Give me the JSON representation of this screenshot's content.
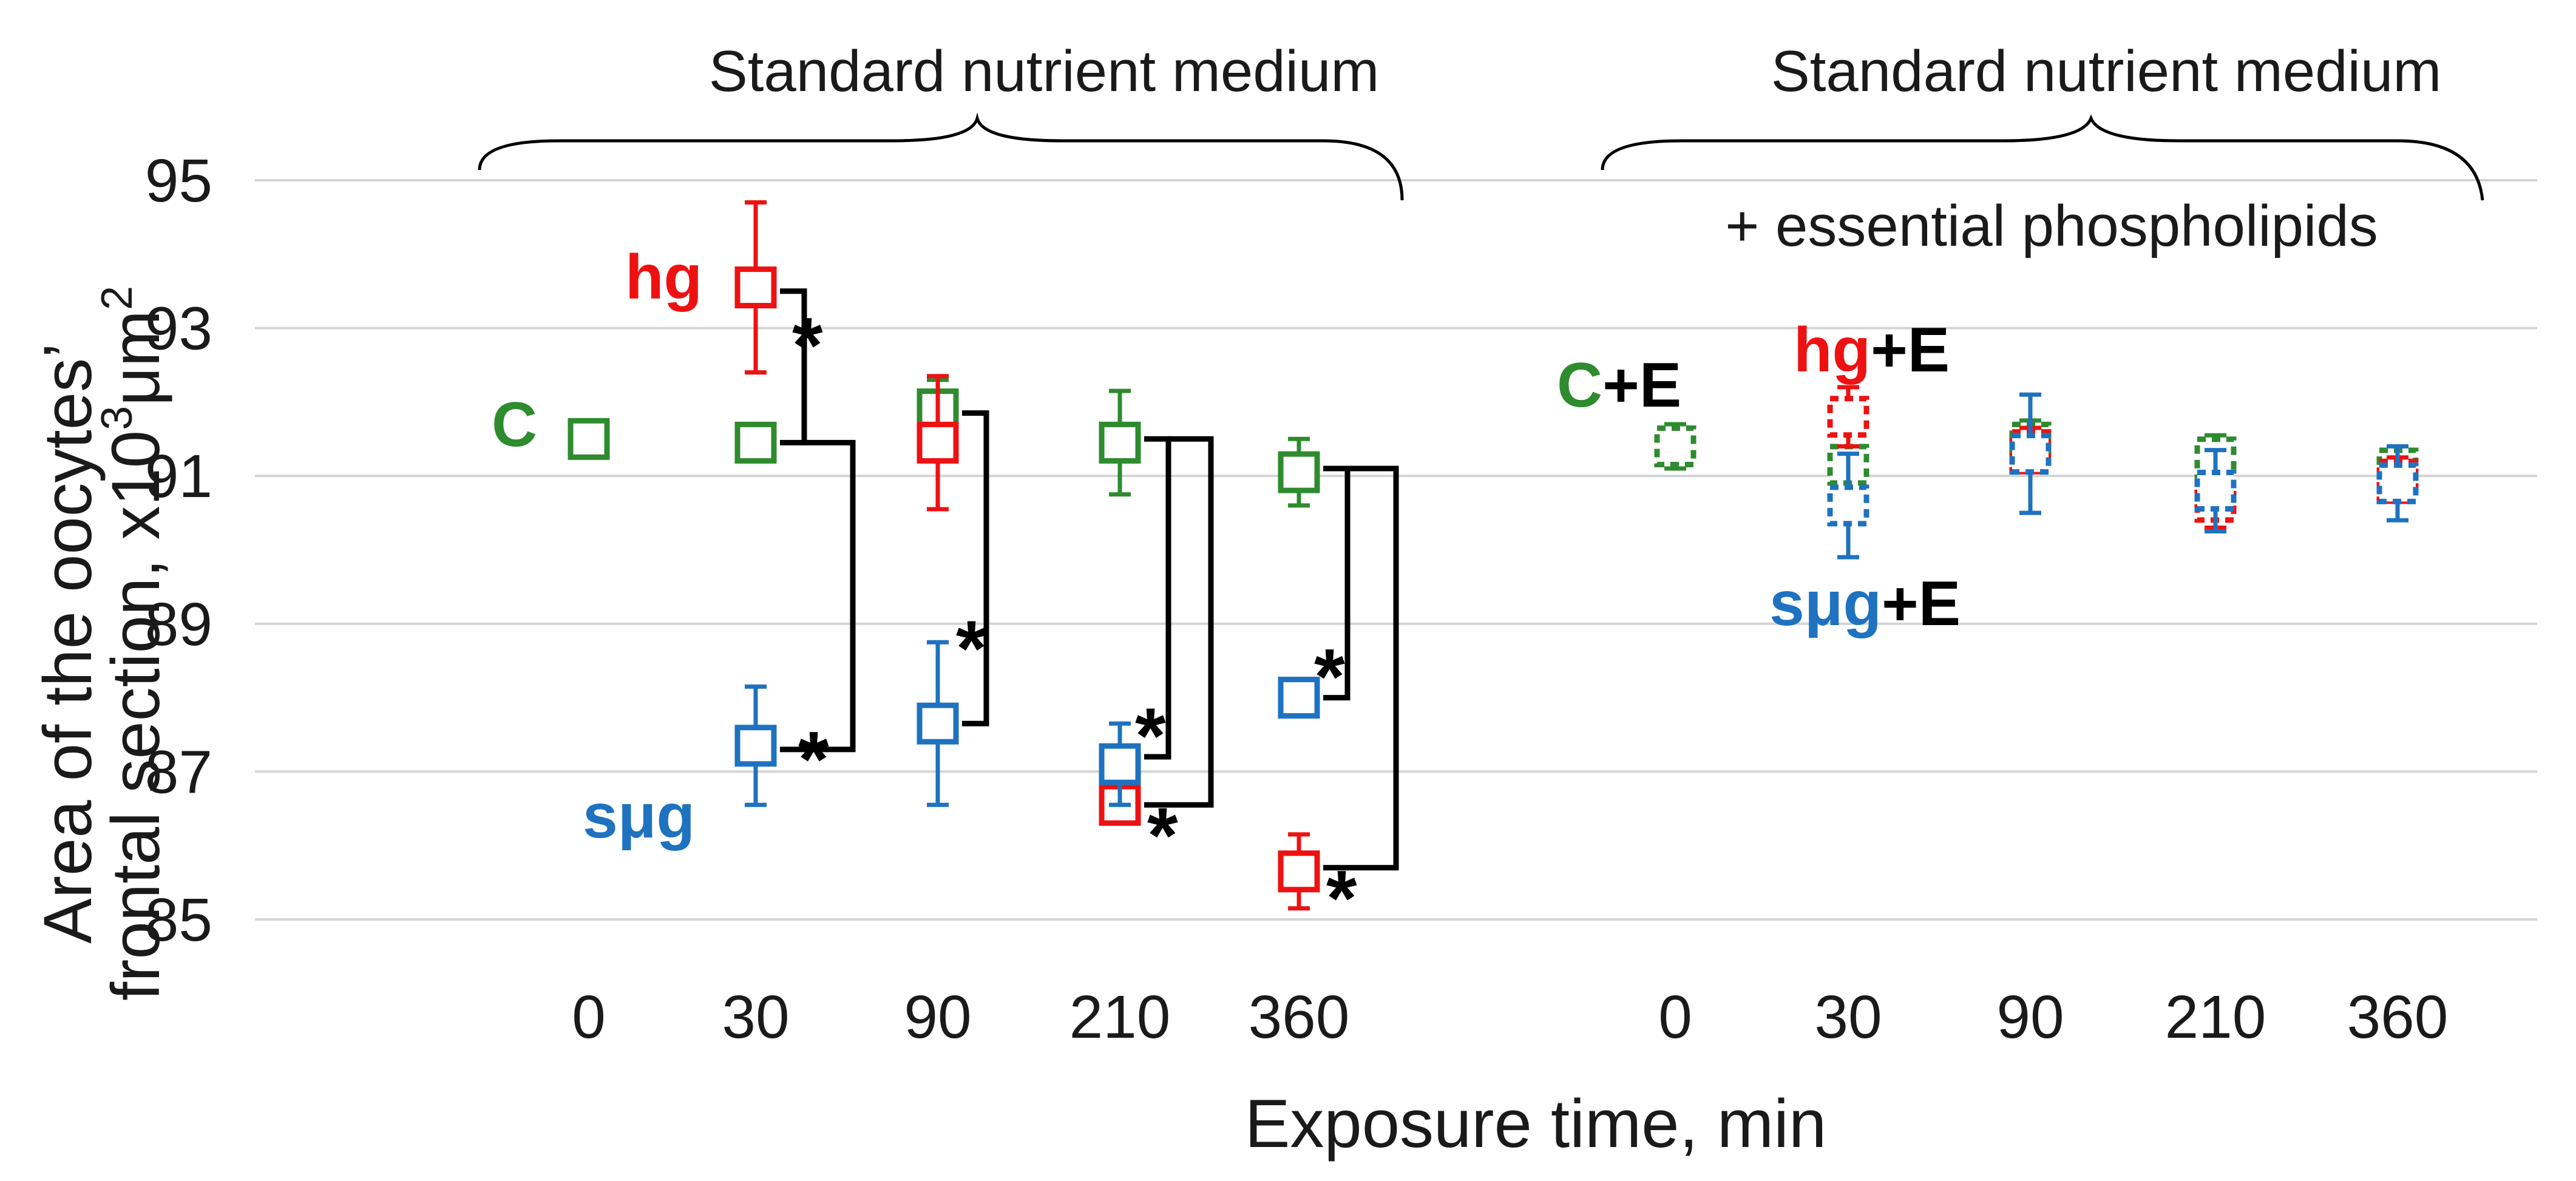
{
  "chart_data": {
    "type": "scatter",
    "ylabel_line1": "Area of the oocytes’",
    "ylabel_line2": "frontal section, x10",
    "ylabel_sup1": "3",
    "ylabel_unit": "μm",
    "ylabel_sup2": "2",
    "xlabel": "Exposure time, min",
    "ylim": [
      85,
      95
    ],
    "yticks": [
      "85",
      "87",
      "89",
      "91",
      "93",
      "95"
    ],
    "grid": true,
    "panels": [
      {
        "title": "Standard nutrient medium",
        "subtitle": "",
        "categories": [
          "0",
          "30",
          "90",
          "210",
          "360"
        ],
        "line_style": "solid",
        "series": [
          {
            "name": "C",
            "color": "#2e8b2e",
            "points": [
              {
                "x": "0",
                "y": 91.5,
                "err": 0.2
              }
            ]
          },
          {
            "name": "C",
            "color": "#2e8b2e",
            "points": [
              {
                "x": "30",
                "y": 91.45,
                "err": 0.15
              },
              {
                "x": "90",
                "y": 91.9,
                "err": 0.4
              },
              {
                "x": "210",
                "y": 91.45,
                "err": 0.7
              },
              {
                "x": "360",
                "y": 91.05,
                "err": 0.45
              }
            ]
          },
          {
            "name": "hg",
            "color": "#ee1111",
            "points": [
              {
                "x": "30",
                "y": 93.55,
                "err": 1.15
              },
              {
                "x": "90",
                "y": 91.45,
                "err": 0.9
              },
              {
                "x": "210",
                "y": 86.55,
                "err": 0.25
              },
              {
                "x": "360",
                "y": 85.65,
                "err": 0.5
              }
            ]
          },
          {
            "name": "sμg",
            "color": "#1e72c0",
            "points": [
              {
                "x": "30",
                "y": 87.35,
                "err": 0.8
              },
              {
                "x": "90",
                "y": 87.65,
                "err": 1.1
              },
              {
                "x": "210",
                "y": 87.1,
                "err": 0.55
              },
              {
                "x": "360",
                "y": 88.0,
                "err": 0.25
              }
            ]
          }
        ],
        "significance": [
          {
            "x": "30",
            "top": 93.5,
            "mid": 91.45,
            "bottom": 87.3
          },
          {
            "x": "90",
            "top": 91.85,
            "bottom": 87.65
          },
          {
            "x": "210",
            "top": 91.5,
            "mid": 87.2,
            "bottom": 86.55
          },
          {
            "x": "360",
            "top": 91.1,
            "mid": 88.0,
            "bottom": 85.7
          }
        ],
        "star": "*"
      },
      {
        "title": "Standard nutrient medium",
        "subtitle": "+ essential phospholipids",
        "categories": [
          "0",
          "30",
          "90",
          "210",
          "360"
        ],
        "line_style": "dashed",
        "series": [
          {
            "name": "C+E",
            "color": "#2e8b2e",
            "points": [
              {
                "x": "0",
                "y": 91.4,
                "err": 0.3
              },
              {
                "x": "30",
                "y": 91.15,
                "err": 0.5
              },
              {
                "x": "90",
                "y": 91.45,
                "err": 0.3
              },
              {
                "x": "210",
                "y": 91.25,
                "err": 0.3
              },
              {
                "x": "360",
                "y": 91.1,
                "err": 0.3
              }
            ]
          },
          {
            "name": "hg+E",
            "color": "#ee1111",
            "points": [
              {
                "x": "30",
                "y": 91.8,
                "err": 0.4
              },
              {
                "x": "90",
                "y": 91.35,
                "err": 0.3
              },
              {
                "x": "210",
                "y": 90.65,
                "err": 0.35
              },
              {
                "x": "360",
                "y": 90.95,
                "err": 0.3
              }
            ]
          },
          {
            "name": "sμg+E",
            "color": "#1e72c0",
            "points": [
              {
                "x": "30",
                "y": 90.6,
                "err": 0.7
              },
              {
                "x": "90",
                "y": 91.3,
                "err": 0.8
              },
              {
                "x": "210",
                "y": 90.8,
                "err": 0.55
              },
              {
                "x": "360",
                "y": 90.9,
                "err": 0.5
              }
            ]
          }
        ]
      }
    ],
    "group_labels": [
      {
        "prefix": "C",
        "suffix": "",
        "color": "#2e8b2e"
      },
      {
        "prefix": "hg",
        "suffix": "",
        "color": "#ee1111"
      },
      {
        "prefix": "sμg",
        "suffix": "",
        "color": "#1e72c0"
      },
      {
        "prefix": "C",
        "suffix": "+E",
        "color": "#2e8b2e"
      },
      {
        "prefix": "hg",
        "suffix": "+E",
        "color": "#ee1111"
      },
      {
        "prefix": "sμg",
        "suffix": "+E",
        "color": "#1e72c0"
      }
    ]
  }
}
